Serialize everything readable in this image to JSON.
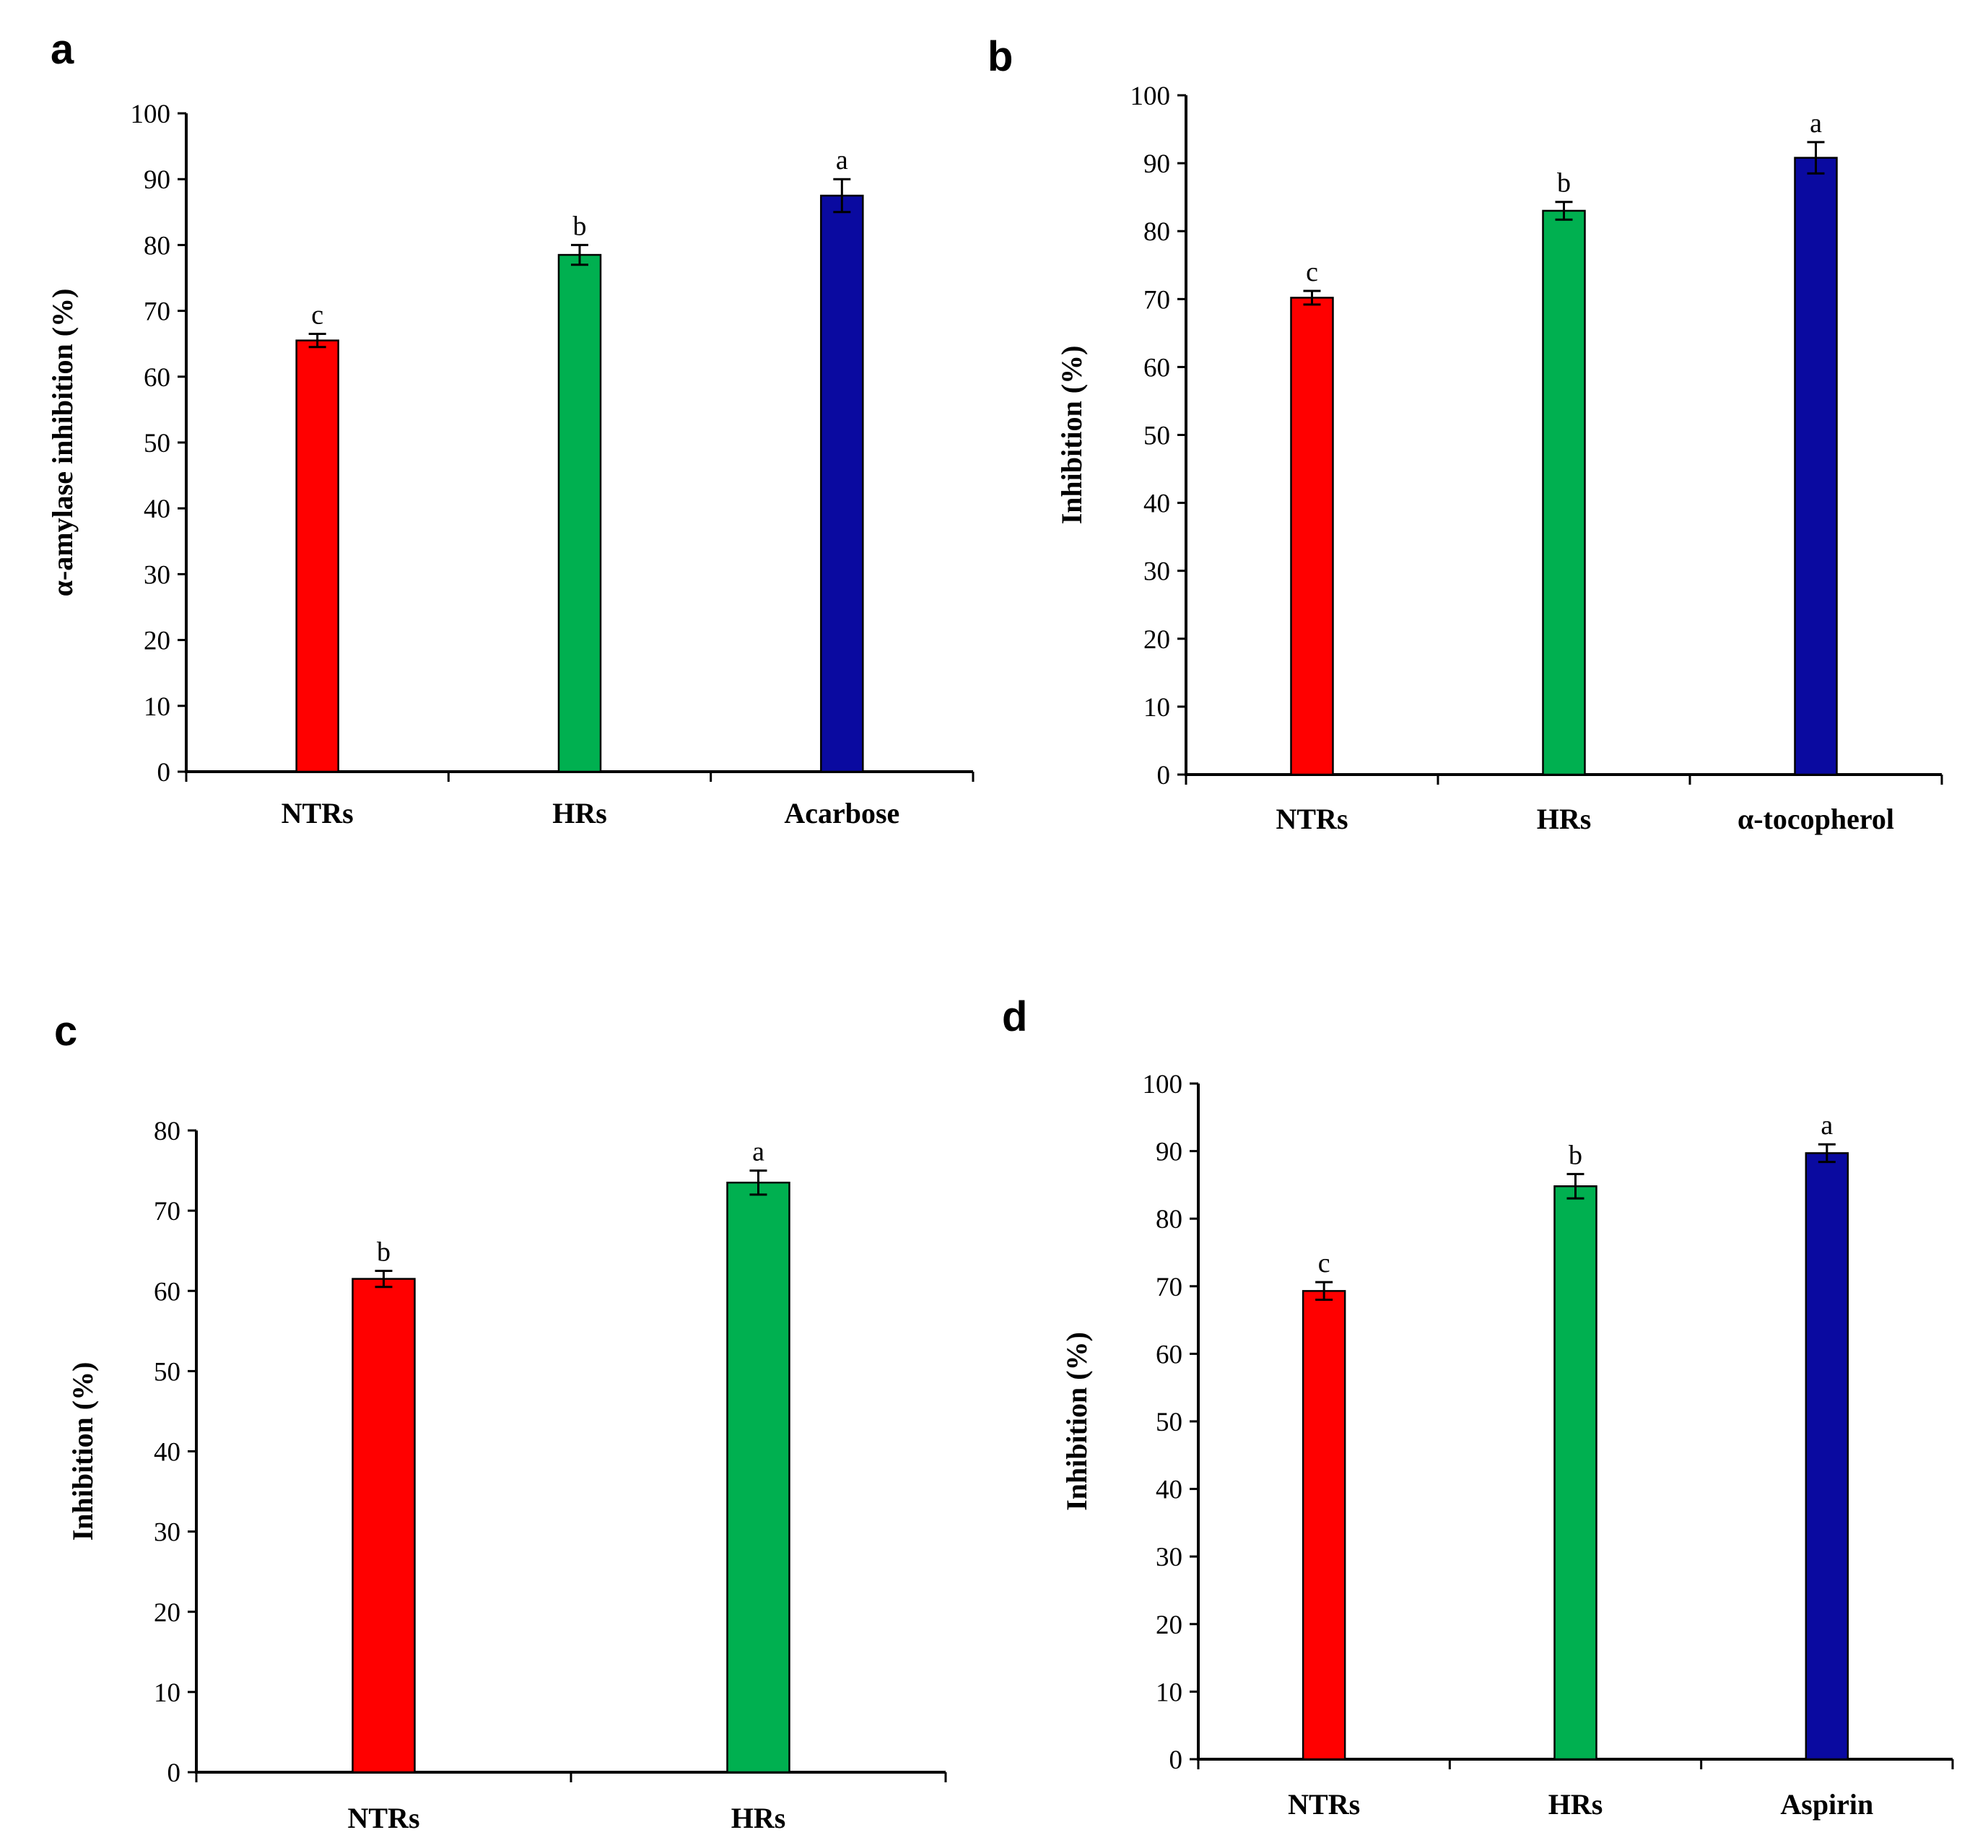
{
  "chart_data": [
    {
      "panel": "a",
      "type": "bar",
      "categories": [
        "NTRs",
        "HRs",
        "Acarbose"
      ],
      "values": [
        65.5,
        78.5,
        87.5
      ],
      "errors": [
        1.0,
        1.5,
        2.5
      ],
      "significance": [
        "c",
        "b",
        "a"
      ],
      "colors": [
        "#ff0000",
        "#00b050",
        "#0a0aa0"
      ],
      "ylabel": "α-amylase inhibition (%)",
      "ylim": [
        0,
        100
      ],
      "yticks": [
        0,
        10,
        20,
        30,
        40,
        50,
        60,
        70,
        80,
        90,
        100
      ]
    },
    {
      "panel": "b",
      "type": "bar",
      "categories": [
        "NTRs",
        "HRs",
        "α-tocopherol"
      ],
      "values": [
        70.2,
        83.0,
        90.8
      ],
      "errors": [
        1.0,
        1.3,
        2.3
      ],
      "significance": [
        "c",
        "b",
        "a"
      ],
      "colors": [
        "#ff0000",
        "#00b050",
        "#0a0aa0"
      ],
      "ylabel": "Inhibition (%)",
      "ylim": [
        0,
        100
      ],
      "yticks": [
        0,
        10,
        20,
        30,
        40,
        50,
        60,
        70,
        80,
        90,
        100
      ]
    },
    {
      "panel": "c",
      "type": "bar",
      "categories": [
        "NTRs",
        "HRs"
      ],
      "values": [
        61.5,
        73.5
      ],
      "errors": [
        1.0,
        1.5
      ],
      "significance": [
        "b",
        "a"
      ],
      "colors": [
        "#ff0000",
        "#00b050"
      ],
      "ylabel": "Inhibition (%)",
      "ylim": [
        0,
        80
      ],
      "yticks": [
        0,
        10,
        20,
        30,
        40,
        50,
        60,
        70,
        80
      ]
    },
    {
      "panel": "d",
      "type": "bar",
      "categories": [
        "NTRs",
        "HRs",
        "Aspirin"
      ],
      "values": [
        69.3,
        84.8,
        89.7
      ],
      "errors": [
        1.3,
        1.8,
        1.3
      ],
      "significance": [
        "c",
        "b",
        "a"
      ],
      "colors": [
        "#ff0000",
        "#00b050",
        "#0a0aa0"
      ],
      "ylabel": "Inhibition (%)",
      "ylim": [
        0,
        100
      ],
      "yticks": [
        0,
        10,
        20,
        30,
        40,
        50,
        60,
        70,
        80,
        90,
        100
      ]
    }
  ]
}
